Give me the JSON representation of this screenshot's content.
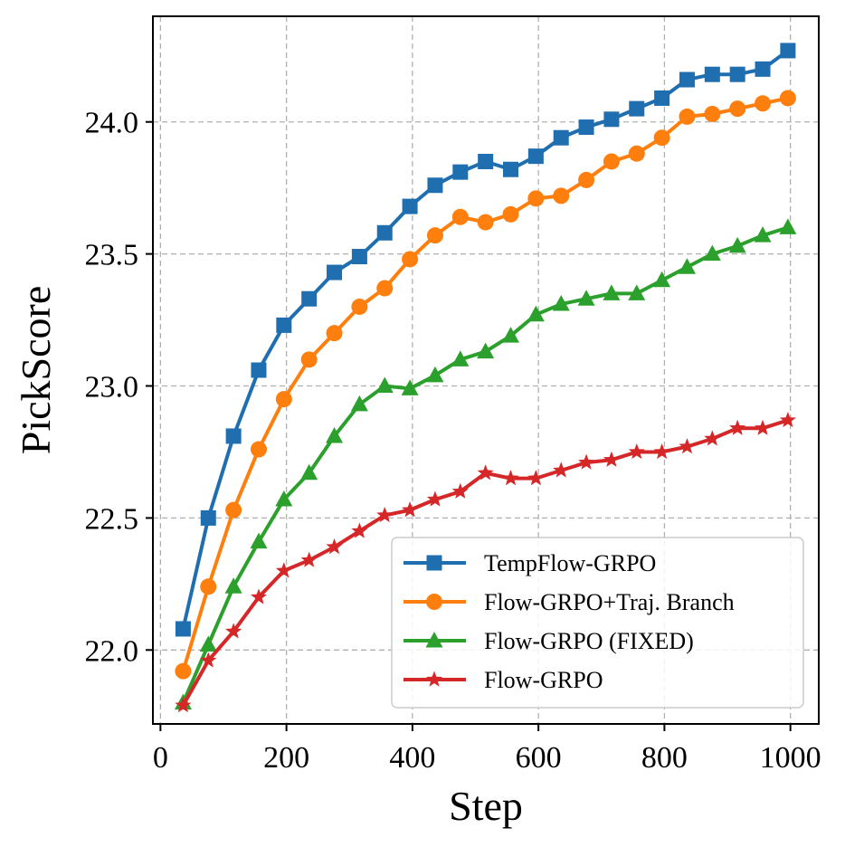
{
  "chart_data": {
    "type": "line",
    "xlabel": "Step",
    "ylabel": "PickScore",
    "xlim": [
      -12,
      1045
    ],
    "ylim": [
      21.72,
      24.4
    ],
    "xticks": [
      0,
      200,
      400,
      600,
      800,
      1000
    ],
    "yticks": [
      22.0,
      22.5,
      23.0,
      23.5,
      24.0
    ],
    "xtick_labels": [
      "0",
      "200",
      "400",
      "600",
      "800",
      "1000"
    ],
    "ytick_labels": [
      "22.0",
      "22.5",
      "23.0",
      "23.5",
      "24.0"
    ],
    "grid": true,
    "legend_position": "lower-right",
    "x": [
      36,
      76,
      116,
      156,
      196,
      236,
      276,
      316,
      356,
      396,
      436,
      476,
      516,
      556,
      596,
      636,
      676,
      716,
      756,
      796,
      836,
      876,
      916,
      956,
      996
    ],
    "series": [
      {
        "name": "TempFlow-GRPO",
        "color": "#1f6fb0",
        "marker": "square",
        "values": [
          22.08,
          22.5,
          22.81,
          23.06,
          23.23,
          23.33,
          23.43,
          23.49,
          23.58,
          23.68,
          23.76,
          23.81,
          23.85,
          23.82,
          23.87,
          23.94,
          23.98,
          24.01,
          24.05,
          24.09,
          24.16,
          24.18,
          24.18,
          24.2,
          24.27
        ]
      },
      {
        "name": "Flow-GRPO+Traj. Branch",
        "color": "#ff7f0e",
        "marker": "circle",
        "values": [
          21.92,
          22.24,
          22.53,
          22.76,
          22.95,
          23.1,
          23.2,
          23.3,
          23.37,
          23.48,
          23.57,
          23.64,
          23.62,
          23.65,
          23.71,
          23.72,
          23.78,
          23.85,
          23.88,
          23.94,
          24.02,
          24.03,
          24.05,
          24.07,
          24.09
        ]
      },
      {
        "name": "Flow-GRPO (FIXED)",
        "color": "#2ca02c",
        "marker": "triangle",
        "values": [
          21.8,
          22.02,
          22.24,
          22.41,
          22.57,
          22.67,
          22.81,
          22.93,
          23.0,
          22.99,
          23.04,
          23.1,
          23.13,
          23.19,
          23.27,
          23.31,
          23.33,
          23.35,
          23.35,
          23.4,
          23.45,
          23.5,
          23.53,
          23.57,
          23.6
        ]
      },
      {
        "name": "Flow-GRPO",
        "color": "#d62728",
        "marker": "star",
        "values": [
          21.79,
          21.96,
          22.07,
          22.2,
          22.3,
          22.34,
          22.39,
          22.45,
          22.51,
          22.53,
          22.57,
          22.6,
          22.67,
          22.65,
          22.65,
          22.68,
          22.71,
          22.72,
          22.75,
          22.75,
          22.77,
          22.8,
          22.84,
          22.84,
          22.87
        ]
      }
    ]
  }
}
